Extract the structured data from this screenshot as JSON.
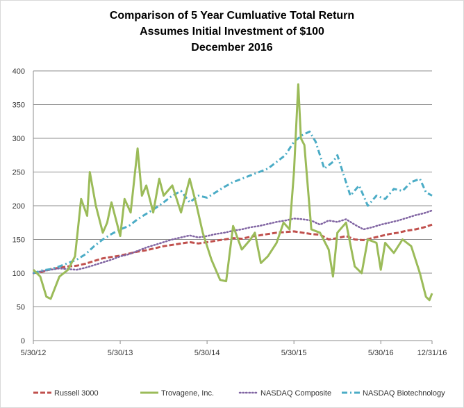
{
  "chart_data": {
    "type": "line",
    "title": "Comparison of 5 Year Cumluative Total Return",
    "subtitle1": "Assumes Initial Investment of $100",
    "subtitle2": "December 2016",
    "xlabel": "",
    "ylabel": "",
    "ylim": [
      0,
      400
    ],
    "yticks": [
      0,
      50,
      100,
      150,
      200,
      250,
      300,
      350,
      400
    ],
    "ytick_labels": [
      "0",
      "50",
      "100",
      "150",
      "200",
      "250",
      "300",
      "350",
      "400"
    ],
    "xlim": [
      0,
      4.59
    ],
    "xticks": [
      0,
      1,
      2,
      3,
      4,
      4.59
    ],
    "xtick_labels": [
      "5/30/12",
      "5/30/13",
      "5/30/14",
      "5/30/15",
      "5/30/16",
      "12/31/16"
    ],
    "x_unit": "years since 5/30/12",
    "grid": true,
    "legend_position": "bottom",
    "series": [
      {
        "name": "Russell 3000",
        "color": "#c0504d",
        "style": "dashed",
        "points": [
          [
            0,
            100
          ],
          [
            0.1,
            102
          ],
          [
            0.2,
            106
          ],
          [
            0.3,
            108
          ],
          [
            0.4,
            110
          ],
          [
            0.5,
            111
          ],
          [
            0.6,
            114
          ],
          [
            0.7,
            118
          ],
          [
            0.8,
            122
          ],
          [
            0.9,
            124
          ],
          [
            1.0,
            126
          ],
          [
            1.1,
            129
          ],
          [
            1.2,
            132
          ],
          [
            1.3,
            134
          ],
          [
            1.4,
            137
          ],
          [
            1.5,
            140
          ],
          [
            1.6,
            142
          ],
          [
            1.7,
            144
          ],
          [
            1.8,
            146
          ],
          [
            1.9,
            144
          ],
          [
            2.0,
            146
          ],
          [
            2.1,
            148
          ],
          [
            2.2,
            150
          ],
          [
            2.3,
            152
          ],
          [
            2.4,
            151
          ],
          [
            2.5,
            154
          ],
          [
            2.6,
            156
          ],
          [
            2.7,
            158
          ],
          [
            2.8,
            160
          ],
          [
            2.9,
            161
          ],
          [
            3.0,
            162
          ],
          [
            3.1,
            160
          ],
          [
            3.2,
            158
          ],
          [
            3.3,
            157
          ],
          [
            3.4,
            150
          ],
          [
            3.5,
            152
          ],
          [
            3.6,
            155
          ],
          [
            3.7,
            150
          ],
          [
            3.8,
            149
          ],
          [
            3.9,
            152
          ],
          [
            4.0,
            155
          ],
          [
            4.1,
            158
          ],
          [
            4.2,
            160
          ],
          [
            4.3,
            163
          ],
          [
            4.4,
            165
          ],
          [
            4.5,
            168
          ],
          [
            4.59,
            172
          ]
        ]
      },
      {
        "name": "Trovagene, Inc.",
        "color": "#9bbb59",
        "style": "solid",
        "points": [
          [
            0,
            105
          ],
          [
            0.08,
            95
          ],
          [
            0.15,
            65
          ],
          [
            0.2,
            62
          ],
          [
            0.3,
            95
          ],
          [
            0.4,
            105
          ],
          [
            0.48,
            125
          ],
          [
            0.55,
            210
          ],
          [
            0.62,
            185
          ],
          [
            0.65,
            250
          ],
          [
            0.72,
            200
          ],
          [
            0.8,
            160
          ],
          [
            0.85,
            175
          ],
          [
            0.9,
            205
          ],
          [
            0.95,
            180
          ],
          [
            1.0,
            155
          ],
          [
            1.05,
            210
          ],
          [
            1.12,
            190
          ],
          [
            1.2,
            285
          ],
          [
            1.25,
            215
          ],
          [
            1.3,
            230
          ],
          [
            1.38,
            190
          ],
          [
            1.45,
            240
          ],
          [
            1.5,
            215
          ],
          [
            1.6,
            230
          ],
          [
            1.7,
            190
          ],
          [
            1.8,
            240
          ],
          [
            1.88,
            200
          ],
          [
            1.95,
            160
          ],
          [
            2.05,
            120
          ],
          [
            2.15,
            90
          ],
          [
            2.22,
            88
          ],
          [
            2.3,
            170
          ],
          [
            2.4,
            135
          ],
          [
            2.5,
            150
          ],
          [
            2.55,
            160
          ],
          [
            2.62,
            115
          ],
          [
            2.7,
            125
          ],
          [
            2.8,
            145
          ],
          [
            2.88,
            175
          ],
          [
            2.95,
            165
          ],
          [
            3.0,
            250
          ],
          [
            3.05,
            380
          ],
          [
            3.08,
            300
          ],
          [
            3.12,
            290
          ],
          [
            3.2,
            165
          ],
          [
            3.3,
            160
          ],
          [
            3.4,
            135
          ],
          [
            3.45,
            95
          ],
          [
            3.5,
            160
          ],
          [
            3.6,
            175
          ],
          [
            3.7,
            110
          ],
          [
            3.78,
            100
          ],
          [
            3.85,
            150
          ],
          [
            3.95,
            145
          ],
          [
            4.0,
            105
          ],
          [
            4.05,
            145
          ],
          [
            4.15,
            130
          ],
          [
            4.25,
            150
          ],
          [
            4.35,
            140
          ],
          [
            4.45,
            100
          ],
          [
            4.52,
            65
          ],
          [
            4.56,
            60
          ],
          [
            4.59,
            70
          ]
        ]
      },
      {
        "name": "NASDAQ Composite",
        "color": "#8064a2",
        "style": "dotted",
        "points": [
          [
            0,
            100
          ],
          [
            0.1,
            103
          ],
          [
            0.2,
            105
          ],
          [
            0.3,
            107
          ],
          [
            0.4,
            106
          ],
          [
            0.5,
            105
          ],
          [
            0.6,
            108
          ],
          [
            0.7,
            112
          ],
          [
            0.8,
            116
          ],
          [
            0.9,
            120
          ],
          [
            1.0,
            125
          ],
          [
            1.1,
            128
          ],
          [
            1.2,
            133
          ],
          [
            1.3,
            138
          ],
          [
            1.4,
            142
          ],
          [
            1.5,
            146
          ],
          [
            1.6,
            150
          ],
          [
            1.7,
            153
          ],
          [
            1.8,
            156
          ],
          [
            1.9,
            153
          ],
          [
            2.0,
            155
          ],
          [
            2.1,
            158
          ],
          [
            2.2,
            160
          ],
          [
            2.3,
            163
          ],
          [
            2.4,
            165
          ],
          [
            2.5,
            168
          ],
          [
            2.6,
            170
          ],
          [
            2.7,
            173
          ],
          [
            2.8,
            176
          ],
          [
            2.9,
            178
          ],
          [
            3.0,
            181
          ],
          [
            3.1,
            180
          ],
          [
            3.2,
            178
          ],
          [
            3.3,
            172
          ],
          [
            3.4,
            178
          ],
          [
            3.5,
            176
          ],
          [
            3.6,
            180
          ],
          [
            3.7,
            172
          ],
          [
            3.8,
            165
          ],
          [
            3.9,
            168
          ],
          [
            4.0,
            172
          ],
          [
            4.1,
            175
          ],
          [
            4.2,
            178
          ],
          [
            4.3,
            182
          ],
          [
            4.4,
            186
          ],
          [
            4.5,
            189
          ],
          [
            4.59,
            193
          ]
        ]
      },
      {
        "name": "NASDAQ Biotechnology",
        "color": "#4bacc6",
        "style": "dashdot",
        "points": [
          [
            0,
            100
          ],
          [
            0.1,
            104
          ],
          [
            0.2,
            106
          ],
          [
            0.3,
            110
          ],
          [
            0.4,
            115
          ],
          [
            0.5,
            120
          ],
          [
            0.6,
            128
          ],
          [
            0.7,
            140
          ],
          [
            0.8,
            150
          ],
          [
            0.9,
            158
          ],
          [
            1.0,
            165
          ],
          [
            1.1,
            170
          ],
          [
            1.2,
            180
          ],
          [
            1.3,
            188
          ],
          [
            1.4,
            196
          ],
          [
            1.5,
            205
          ],
          [
            1.6,
            215
          ],
          [
            1.7,
            222
          ],
          [
            1.8,
            205
          ],
          [
            1.9,
            215
          ],
          [
            2.0,
            212
          ],
          [
            2.1,
            220
          ],
          [
            2.2,
            228
          ],
          [
            2.3,
            235
          ],
          [
            2.4,
            240
          ],
          [
            2.5,
            245
          ],
          [
            2.6,
            250
          ],
          [
            2.7,
            255
          ],
          [
            2.8,
            265
          ],
          [
            2.9,
            275
          ],
          [
            3.0,
            295
          ],
          [
            3.1,
            305
          ],
          [
            3.18,
            310
          ],
          [
            3.25,
            295
          ],
          [
            3.35,
            255
          ],
          [
            3.45,
            265
          ],
          [
            3.5,
            275
          ],
          [
            3.55,
            255
          ],
          [
            3.65,
            215
          ],
          [
            3.75,
            230
          ],
          [
            3.85,
            200
          ],
          [
            3.95,
            215
          ],
          [
            4.05,
            210
          ],
          [
            4.15,
            225
          ],
          [
            4.25,
            222
          ],
          [
            4.35,
            235
          ],
          [
            4.45,
            240
          ],
          [
            4.52,
            220
          ],
          [
            4.59,
            215
          ]
        ]
      }
    ]
  }
}
